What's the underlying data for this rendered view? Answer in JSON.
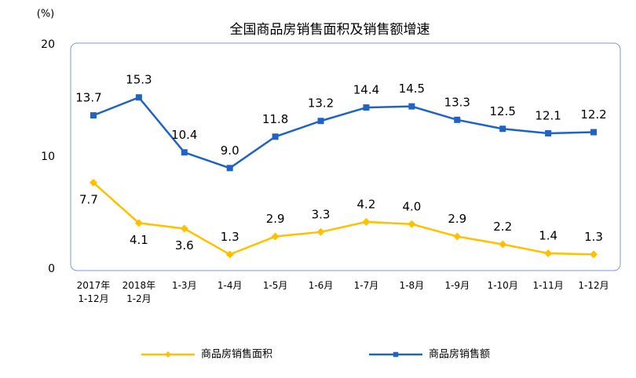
{
  "chart_data": {
    "type": "line",
    "title": "全国商品房销售面积及销售额增速",
    "y_label": "(%)",
    "categories": [
      "2017年\n1-12月",
      "2018年\n1-2月",
      "1-3月",
      "1-4月",
      "1-5月",
      "1-6月",
      "1-7月",
      "1-8月",
      "1-9月",
      "1-10月",
      "1-11月",
      "1-12月"
    ],
    "series": [
      {
        "name": "商品房销售面积",
        "color": "#ffc000",
        "marker": "diamond",
        "values": [
          7.7,
          4.1,
          3.6,
          1.3,
          2.9,
          3.3,
          4.2,
          4.0,
          2.9,
          2.2,
          1.4,
          1.3
        ],
        "value_labels": [
          "7.7",
          "4.1",
          "3.6",
          "1.3",
          "2.9",
          "3.3",
          "4.2",
          "4.0",
          "2.9",
          "2.2",
          "1.4",
          "1.3"
        ]
      },
      {
        "name": "商品房销售额",
        "color": "#1f63c6",
        "marker": "square",
        "values": [
          13.7,
          15.3,
          10.4,
          9.0,
          11.8,
          13.2,
          14.4,
          14.5,
          13.3,
          12.5,
          12.1,
          12.2
        ],
        "value_labels": [
          "13.7",
          "15.3",
          "10.4",
          "9.0",
          "11.8",
          "13.2",
          "14.4",
          "14.5",
          "13.3",
          "12.5",
          "12.1",
          "12.2"
        ]
      }
    ],
    "ylim": [
      0,
      20
    ],
    "yticks": [
      0,
      10,
      20
    ],
    "grid": false,
    "legend": "bottom"
  }
}
